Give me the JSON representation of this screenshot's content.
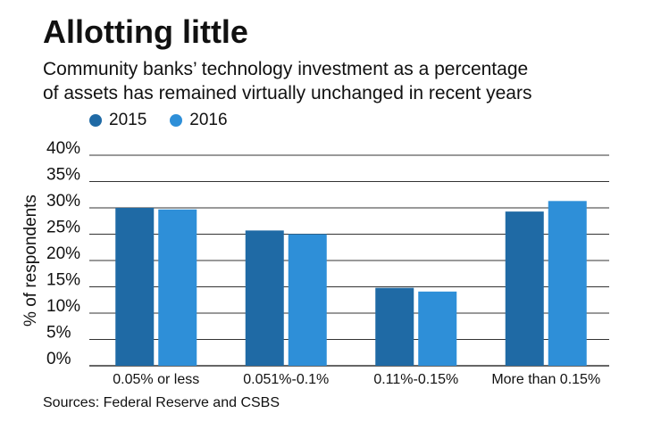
{
  "header": {
    "title": "Allotting little",
    "subtitle_line1": "Community banks’ technology investment as a percentage",
    "subtitle_line2": "of assets has remained virtually unchanged in recent years"
  },
  "footer": {
    "source": "Sources: Federal Reserve and CSBS"
  },
  "colors": {
    "series_2015": "#1f6aa5",
    "series_2016": "#2e8fd8",
    "grid": "#333333"
  },
  "chart_data": {
    "type": "bar",
    "title": "Allotting little",
    "xlabel": "",
    "ylabel": "% of respondents",
    "ylim": [
      0,
      40
    ],
    "yticks": [
      0,
      5,
      10,
      15,
      20,
      25,
      30,
      35,
      40
    ],
    "ytick_labels": [
      "0%",
      "5%",
      "10%",
      "15%",
      "20%",
      "25%",
      "30%",
      "35%",
      "40%"
    ],
    "grid": true,
    "legend_position": "top-left",
    "categories": [
      "0.05% or less",
      "0.051%-0.1%",
      "0.11%-0.15%",
      "More than 0.15%"
    ],
    "series": [
      {
        "name": "2015",
        "values": [
          30,
          25.7,
          14.8,
          29.3
        ]
      },
      {
        "name": "2016",
        "values": [
          29.7,
          25,
          14.1,
          31.3
        ]
      }
    ]
  }
}
